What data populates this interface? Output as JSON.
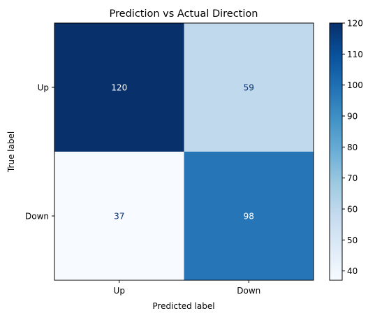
{
  "chart_data": {
    "type": "heatmap",
    "title": "Prediction vs Actual Direction",
    "xlabel": "Predicted label",
    "ylabel": "True label",
    "x_categories": [
      "Up",
      "Down"
    ],
    "y_categories": [
      "Up",
      "Down"
    ],
    "values": [
      [
        120,
        59
      ],
      [
        37,
        98
      ]
    ],
    "colormap": "Blues",
    "colorbar": {
      "min": 37,
      "max": 120,
      "ticks": [
        40,
        50,
        60,
        70,
        80,
        90,
        100,
        110,
        120
      ]
    },
    "grid": false
  }
}
